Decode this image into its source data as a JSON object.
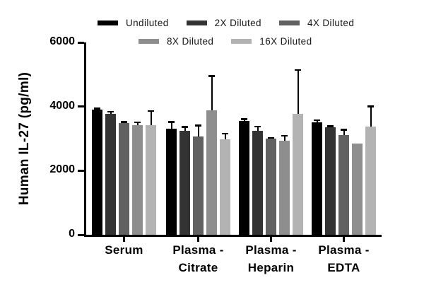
{
  "chart_data": {
    "type": "bar",
    "title": "",
    "xlabel": "",
    "ylabel": "Human IL-27 (pg/ml)",
    "ylim": [
      0,
      6000
    ],
    "yticks": [
      0,
      2000,
      4000,
      6000
    ],
    "grid": false,
    "legend_position": "top",
    "error_bars": "upward SD",
    "categories": [
      "Serum",
      "Plasma -\nCitrate",
      "Plasma -\nHeparin",
      "Plasma -\nEDTA"
    ],
    "series": [
      {
        "name": "Undiluted",
        "color": "#000000",
        "values": [
          3900,
          3300,
          3550,
          3500
        ],
        "errors": [
          70,
          250,
          90,
          100
        ]
      },
      {
        "name": "2X Diluted",
        "color": "#333333",
        "values": [
          3780,
          3240,
          3240,
          3350
        ],
        "errors": [
          90,
          150,
          160,
          60
        ]
      },
      {
        "name": "4X Diluted",
        "color": "#616161",
        "values": [
          3490,
          3060,
          2990,
          3100
        ],
        "errors": [
          60,
          380,
          60,
          200
        ]
      },
      {
        "name": "8X Diluted",
        "color": "#8e8e8e",
        "values": [
          3420,
          3890,
          2930,
          2840
        ],
        "errors": [
          120,
          1090,
          190,
          0
        ]
      },
      {
        "name": "16X Diluted",
        "color": "#b3b3b3",
        "values": [
          3420,
          2980,
          3770,
          3370
        ],
        "errors": [
          470,
          200,
          1400,
          660
        ]
      }
    ],
    "legend_rows": [
      3,
      2
    ]
  }
}
